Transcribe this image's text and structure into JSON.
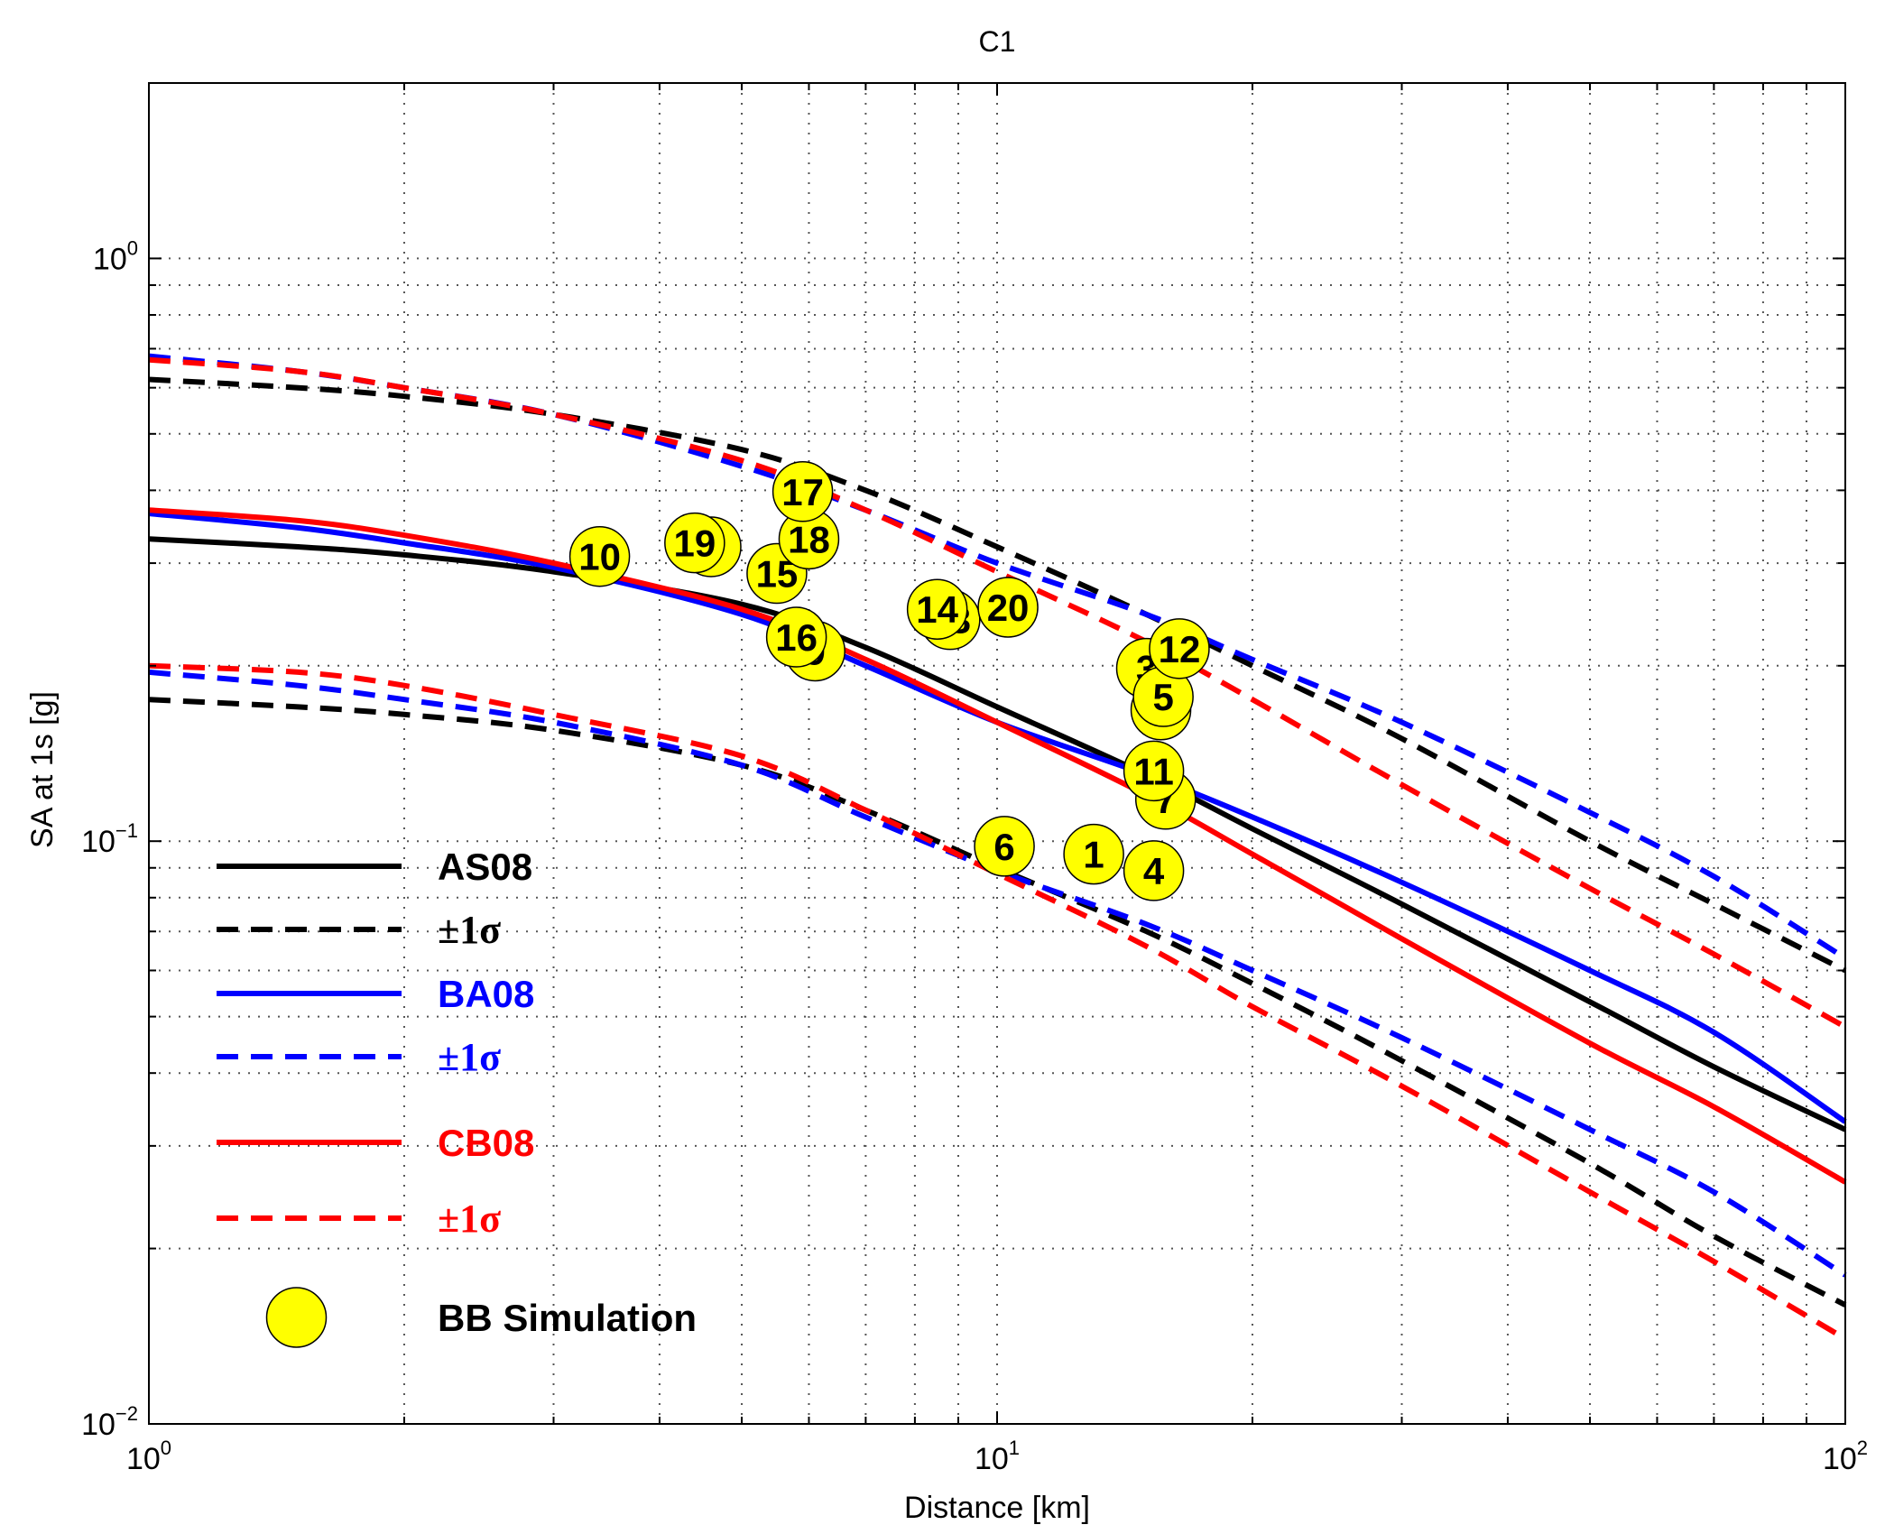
{
  "chart_data": {
    "type": "line",
    "title": "C1",
    "xlabel": "Distance [km]",
    "ylabel": "SA at 1s  [g]",
    "x_scale": "log",
    "y_scale": "log",
    "xlim": [
      1,
      100
    ],
    "ylim": [
      0.01,
      2
    ],
    "grid": true,
    "legend_position": "bottom-left",
    "x_ticks": [
      {
        "value": 1,
        "base": "10",
        "exp": "0"
      },
      {
        "value": 10,
        "base": "10",
        "exp": "1"
      },
      {
        "value": 100,
        "base": "10",
        "exp": "2"
      }
    ],
    "y_ticks": [
      {
        "value": 0.01,
        "base": "10",
        "exp": "−2"
      },
      {
        "value": 0.1,
        "base": "10",
        "exp": "−1"
      },
      {
        "value": 1,
        "base": "10",
        "exp": "0"
      }
    ],
    "series": [
      {
        "name": "AS08",
        "style": "solid",
        "color": "#000000",
        "x": [
          1,
          1.5,
          2,
          3,
          5,
          7,
          10,
          15,
          20,
          30,
          50,
          70,
          100
        ],
        "y": [
          0.33,
          0.32,
          0.31,
          0.29,
          0.255,
          0.215,
          0.17,
          0.13,
          0.105,
          0.078,
          0.053,
          0.041,
          0.032
        ]
      },
      {
        "name": "±1σ",
        "style": "dashed",
        "color": "#000000",
        "x": [
          1,
          1.5,
          2,
          3,
          5,
          7,
          10,
          15,
          20,
          30,
          50,
          70,
          100
        ],
        "y": [
          0.62,
          0.6,
          0.58,
          0.54,
          0.47,
          0.4,
          0.32,
          0.245,
          0.2,
          0.15,
          0.1,
          0.078,
          0.06
        ]
      },
      {
        "name": "±1σ",
        "style": "dashed",
        "color": "#000000",
        "x": [
          1,
          1.5,
          2,
          3,
          5,
          7,
          10,
          15,
          20,
          30,
          50,
          70,
          100
        ],
        "y": [
          0.175,
          0.17,
          0.165,
          0.155,
          0.135,
          0.113,
          0.09,
          0.07,
          0.057,
          0.042,
          0.028,
          0.021,
          0.016
        ]
      },
      {
        "name": "BA08",
        "style": "solid",
        "color": "#0000ff",
        "x": [
          1,
          1.5,
          2,
          3,
          5,
          7,
          10,
          15,
          20,
          30,
          50,
          70,
          100
        ],
        "y": [
          0.365,
          0.345,
          0.325,
          0.295,
          0.245,
          0.2,
          0.16,
          0.13,
          0.11,
          0.085,
          0.06,
          0.047,
          0.033
        ]
      },
      {
        "name": "±1σ",
        "style": "dashed",
        "color": "#0000ff",
        "x": [
          1,
          1.5,
          2,
          3,
          5,
          7,
          10,
          15,
          20,
          30,
          50,
          70,
          100
        ],
        "y": [
          0.68,
          0.64,
          0.6,
          0.54,
          0.44,
          0.37,
          0.3,
          0.245,
          0.205,
          0.16,
          0.112,
          0.087,
          0.063
        ]
      },
      {
        "name": "±1σ",
        "style": "dashed",
        "color": "#0000ff",
        "x": [
          1,
          1.5,
          2,
          3,
          5,
          7,
          10,
          15,
          20,
          30,
          50,
          70,
          100
        ],
        "y": [
          0.195,
          0.185,
          0.175,
          0.16,
          0.135,
          0.11,
          0.089,
          0.072,
          0.06,
          0.046,
          0.032,
          0.025,
          0.018
        ]
      },
      {
        "name": "CB08",
        "style": "solid",
        "color": "#ff0000",
        "x": [
          1,
          1.5,
          2,
          3,
          5,
          7,
          10,
          15,
          20,
          30,
          50,
          70,
          100
        ],
        "y": [
          0.37,
          0.355,
          0.335,
          0.3,
          0.25,
          0.205,
          0.16,
          0.12,
          0.095,
          0.068,
          0.045,
          0.035,
          0.026
        ]
      },
      {
        "name": "±1σ",
        "style": "dashed",
        "color": "#ff0000",
        "x": [
          1,
          1.5,
          2,
          3,
          5,
          7,
          10,
          15,
          20,
          30,
          50,
          70,
          100
        ],
        "y": [
          0.67,
          0.64,
          0.6,
          0.54,
          0.45,
          0.37,
          0.29,
          0.22,
          0.175,
          0.125,
          0.083,
          0.064,
          0.048
        ]
      },
      {
        "name": "±1σ",
        "style": "dashed",
        "color": "#ff0000",
        "x": [
          1,
          1.5,
          2,
          3,
          5,
          7,
          10,
          15,
          20,
          30,
          50,
          70,
          100
        ],
        "y": [
          0.2,
          0.195,
          0.185,
          0.165,
          0.14,
          0.113,
          0.088,
          0.066,
          0.052,
          0.038,
          0.025,
          0.019,
          0.014
        ]
      }
    ],
    "legend": [
      {
        "label": "AS08",
        "style": "solid",
        "color": "#000000",
        "text_color": "#000000",
        "kind": "line"
      },
      {
        "label": "±1σ",
        "style": "dashed",
        "color": "#000000",
        "text_color": "#000000",
        "kind": "line"
      },
      {
        "label": "BA08",
        "style": "solid",
        "color": "#0000ff",
        "text_color": "#0000ff",
        "kind": "line"
      },
      {
        "label": "±1σ",
        "style": "dashed",
        "color": "#0000ff",
        "text_color": "#0000ff",
        "kind": "line"
      },
      {
        "label": "CB08",
        "style": "solid",
        "color": "#ff0000",
        "text_color": "#ff0000",
        "kind": "line"
      },
      {
        "label": "±1σ",
        "style": "dashed",
        "color": "#ff0000",
        "text_color": "#ff0000",
        "kind": "line"
      },
      {
        "label": "BB Simulation",
        "kind": "marker",
        "color": "#ffff00",
        "text_color": "#000000"
      }
    ],
    "markers": {
      "name": "BB Simulation",
      "color": "#ffff00",
      "points": [
        {
          "label": "1",
          "x": 13.0,
          "y": 0.095
        },
        {
          "label": "2",
          "x": 15.6,
          "y": 0.168
        },
        {
          "label": "3",
          "x": 15.0,
          "y": 0.198
        },
        {
          "label": "4",
          "x": 15.3,
          "y": 0.089
        },
        {
          "label": "5",
          "x": 15.7,
          "y": 0.177
        },
        {
          "label": "7",
          "x": 15.8,
          "y": 0.118
        },
        {
          "label": "6",
          "x": 10.2,
          "y": 0.098
        },
        {
          "label": "8",
          "x": 4.6,
          "y": 0.32
        },
        {
          "label": "9",
          "x": 6.1,
          "y": 0.212
        },
        {
          "label": "10",
          "x": 3.4,
          "y": 0.308
        },
        {
          "label": "13",
          "x": 8.8,
          "y": 0.24
        },
        {
          "label": "14",
          "x": 8.5,
          "y": 0.25
        },
        {
          "label": "20",
          "x": 10.3,
          "y": 0.252
        },
        {
          "label": "11",
          "x": 15.3,
          "y": 0.132
        },
        {
          "label": "12",
          "x": 16.4,
          "y": 0.214
        },
        {
          "label": "15",
          "x": 5.5,
          "y": 0.288
        },
        {
          "label": "16",
          "x": 5.8,
          "y": 0.224
        },
        {
          "label": "19",
          "x": 4.4,
          "y": 0.325
        },
        {
          "label": "18",
          "x": 6.0,
          "y": 0.33
        },
        {
          "label": "17",
          "x": 5.9,
          "y": 0.398
        }
      ]
    }
  }
}
